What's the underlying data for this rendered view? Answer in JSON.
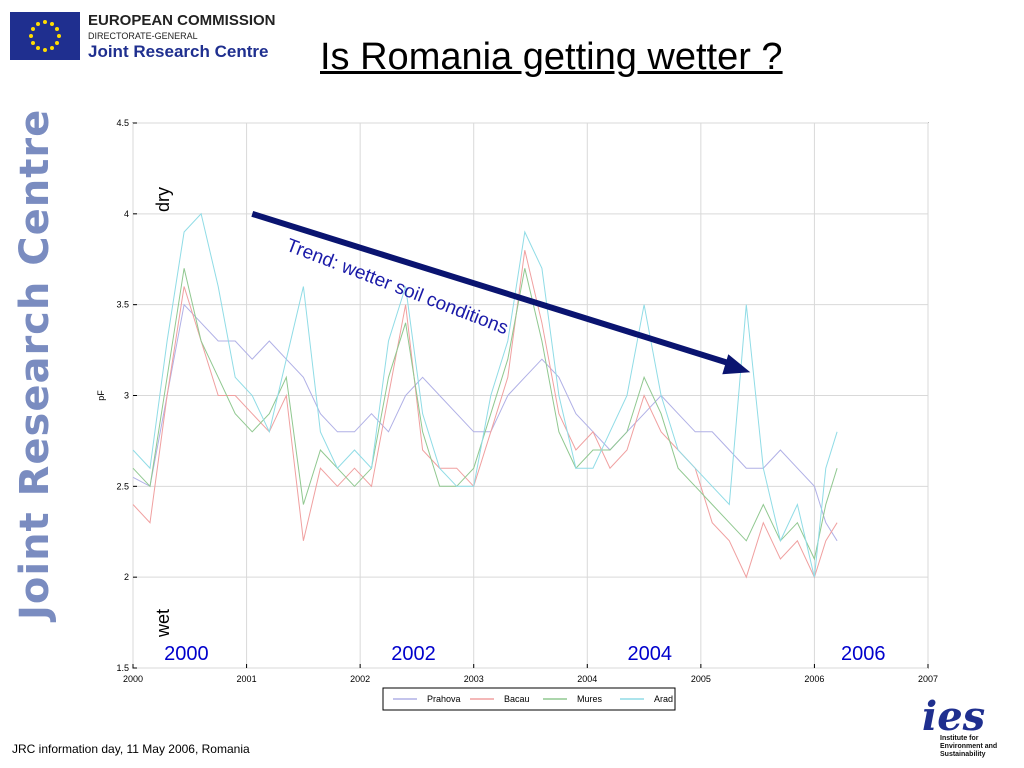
{
  "header": {
    "org_name": "EUROPEAN COMMISSION",
    "org_dg": "DIRECTORATE-GENERAL",
    "org_unit": "Joint Research Centre",
    "title": "Is Romania getting wetter ?"
  },
  "sidebar": {
    "brand": "Joint Research Centre"
  },
  "footer": {
    "text": "JRC information day, 11 May 2006, Romania"
  },
  "ies_logo": {
    "mark": "ies",
    "text": "Institute for Environment and Sustainability"
  },
  "colors": {
    "title": "#000000",
    "brand_blue": "#1f2f8f",
    "arrow": "#0a1470",
    "annotation_text": "#1a1aa8",
    "prahova": "#b0b0e6",
    "bacau": "#f0a0a0",
    "mures": "#90c890",
    "arad": "#90dce6"
  },
  "chart_data": {
    "type": "line",
    "xlim": [
      2000,
      2007
    ],
    "ylim": [
      1.5,
      4.5
    ],
    "x_ticks": [
      "2000",
      "2001",
      "2002",
      "2003",
      "2004",
      "2005",
      "2006",
      "2007"
    ],
    "y_ticks": [
      "1.5",
      "2",
      "2.5",
      "3",
      "3.5",
      "4",
      "4.5"
    ],
    "ylabel": "pF",
    "xlabel": "",
    "grid": true,
    "legend_position": "bottom-center",
    "annotations": {
      "dry": "dry",
      "wet": "wet",
      "trend": "Trend: wetter soil conditions",
      "year_labels": [
        "2000",
        "2002",
        "2004",
        "2006"
      ]
    },
    "trend_arrow": {
      "start": [
        2001.05,
        4.0
      ],
      "end": [
        2005.4,
        3.15
      ]
    },
    "series": [
      {
        "name": "Prahova",
        "x": [
          2000.0,
          2000.15,
          2000.3,
          2000.45,
          2000.6,
          2000.75,
          2000.9,
          2001.05,
          2001.2,
          2001.35,
          2001.5,
          2001.65,
          2001.8,
          2001.95,
          2002.1,
          2002.25,
          2002.4,
          2002.55,
          2002.7,
          2002.85,
          2003.0,
          2003.15,
          2003.3,
          2003.45,
          2003.6,
          2003.75,
          2003.9,
          2004.05,
          2004.2,
          2004.35,
          2004.5,
          2004.65,
          2004.8,
          2004.95,
          2005.1,
          2005.25,
          2005.4,
          2005.55,
          2005.7,
          2005.85,
          2006.0,
          2006.1,
          2006.2
        ],
        "y": [
          2.55,
          2.5,
          3.0,
          3.5,
          3.4,
          3.3,
          3.3,
          3.2,
          3.3,
          3.2,
          3.1,
          2.9,
          2.8,
          2.8,
          2.9,
          2.8,
          3.0,
          3.1,
          3.0,
          2.9,
          2.8,
          2.8,
          3.0,
          3.1,
          3.2,
          3.1,
          2.9,
          2.8,
          2.7,
          2.8,
          2.9,
          3.0,
          2.9,
          2.8,
          2.8,
          2.7,
          2.6,
          2.6,
          2.7,
          2.6,
          2.5,
          2.3,
          2.2
        ]
      },
      {
        "name": "Bacau",
        "x": [
          2000.0,
          2000.15,
          2000.3,
          2000.45,
          2000.6,
          2000.75,
          2000.9,
          2001.05,
          2001.2,
          2001.35,
          2001.5,
          2001.65,
          2001.8,
          2001.95,
          2002.1,
          2002.25,
          2002.4,
          2002.55,
          2002.7,
          2002.85,
          2003.0,
          2003.15,
          2003.3,
          2003.45,
          2003.6,
          2003.75,
          2003.9,
          2004.05,
          2004.2,
          2004.35,
          2004.5,
          2004.65,
          2004.8,
          2004.95,
          2005.1,
          2005.25,
          2005.4,
          2005.55,
          2005.7,
          2005.85,
          2006.0,
          2006.1,
          2006.2
        ],
        "y": [
          2.4,
          2.3,
          3.0,
          3.6,
          3.3,
          3.0,
          3.0,
          2.9,
          2.8,
          3.0,
          2.2,
          2.6,
          2.5,
          2.6,
          2.5,
          3.0,
          3.5,
          2.7,
          2.6,
          2.6,
          2.5,
          2.8,
          3.1,
          3.8,
          3.4,
          2.9,
          2.7,
          2.8,
          2.6,
          2.7,
          3.0,
          2.8,
          2.7,
          2.6,
          2.3,
          2.2,
          2.0,
          2.3,
          2.1,
          2.2,
          2.0,
          2.2,
          2.3
        ]
      },
      {
        "name": "Mures",
        "x": [
          2000.0,
          2000.15,
          2000.3,
          2000.45,
          2000.6,
          2000.75,
          2000.9,
          2001.05,
          2001.2,
          2001.35,
          2001.5,
          2001.65,
          2001.8,
          2001.95,
          2002.1,
          2002.25,
          2002.4,
          2002.55,
          2002.7,
          2002.85,
          2003.0,
          2003.15,
          2003.3,
          2003.45,
          2003.6,
          2003.75,
          2003.9,
          2004.05,
          2004.2,
          2004.35,
          2004.5,
          2004.65,
          2004.8,
          2004.95,
          2005.1,
          2005.25,
          2005.4,
          2005.55,
          2005.7,
          2005.85,
          2006.0,
          2006.1,
          2006.2
        ],
        "y": [
          2.6,
          2.5,
          3.1,
          3.7,
          3.3,
          3.1,
          2.9,
          2.8,
          2.9,
          3.1,
          2.4,
          2.7,
          2.6,
          2.5,
          2.6,
          3.1,
          3.4,
          2.8,
          2.5,
          2.5,
          2.6,
          2.9,
          3.2,
          3.7,
          3.3,
          2.8,
          2.6,
          2.7,
          2.7,
          2.8,
          3.1,
          2.9,
          2.6,
          2.5,
          2.4,
          2.3,
          2.2,
          2.4,
          2.2,
          2.3,
          2.1,
          2.4,
          2.6
        ]
      },
      {
        "name": "Arad",
        "x": [
          2000.0,
          2000.15,
          2000.3,
          2000.45,
          2000.6,
          2000.75,
          2000.9,
          2001.05,
          2001.2,
          2001.35,
          2001.5,
          2001.65,
          2001.8,
          2001.95,
          2002.1,
          2002.25,
          2002.4,
          2002.55,
          2002.7,
          2002.85,
          2003.0,
          2003.15,
          2003.3,
          2003.45,
          2003.6,
          2003.75,
          2003.9,
          2004.05,
          2004.2,
          2004.35,
          2004.5,
          2004.65,
          2004.8,
          2004.95,
          2005.1,
          2005.25,
          2005.4,
          2005.55,
          2005.7,
          2005.85,
          2006.0,
          2006.1,
          2006.2
        ],
        "y": [
          2.7,
          2.6,
          3.3,
          3.9,
          4.0,
          3.6,
          3.1,
          3.0,
          2.8,
          3.2,
          3.6,
          2.8,
          2.6,
          2.7,
          2.6,
          3.3,
          3.6,
          2.9,
          2.6,
          2.5,
          2.5,
          3.0,
          3.3,
          3.9,
          3.7,
          3.0,
          2.6,
          2.6,
          2.8,
          3.0,
          3.5,
          3.0,
          2.7,
          2.6,
          2.5,
          2.4,
          3.5,
          2.6,
          2.2,
          2.4,
          2.0,
          2.6,
          2.8
        ]
      }
    ]
  }
}
